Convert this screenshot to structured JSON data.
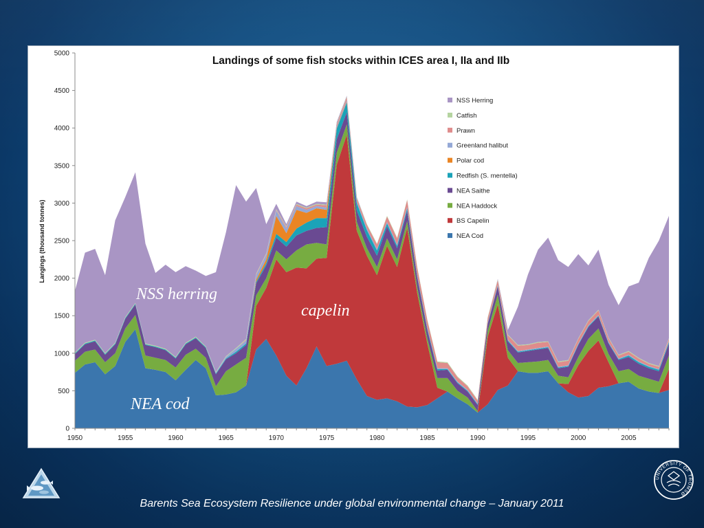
{
  "footer": "Barents Sea Ecosystem Resilience under global environmental change – January 2011",
  "logos": {
    "left": "fish-triangle-logo",
    "right": "university-seal-logo",
    "right_seal_text": "UNIVERSITY OF TROMSØ"
  },
  "annotations": {
    "herring": "NSS herring",
    "capelin": "capelin",
    "cod": "NEA cod"
  },
  "chart_data": {
    "type": "area",
    "stacked": true,
    "title": "Landings of some fish stocks within ICES area I, IIa and IIb",
    "xlabel": "",
    "ylabel": "Langings (thousand tonnes)",
    "ylim": [
      0,
      5000
    ],
    "yticks": [
      "0",
      "500",
      "1000",
      "1500",
      "2000",
      "2500",
      "3000",
      "3500",
      "4000",
      "4500",
      "5000"
    ],
    "xticks": [
      "1950",
      "1955",
      "1960",
      "1965",
      "1970",
      "1975",
      "1980",
      "1985",
      "1990",
      "1995",
      "2000",
      "2005"
    ],
    "grid": false,
    "legend_position": "right",
    "x": [
      1950,
      1951,
      1952,
      1953,
      1954,
      1955,
      1956,
      1957,
      1958,
      1959,
      1960,
      1961,
      1962,
      1963,
      1964,
      1965,
      1966,
      1967,
      1968,
      1969,
      1970,
      1971,
      1972,
      1973,
      1974,
      1975,
      1976,
      1977,
      1978,
      1979,
      1980,
      1981,
      1982,
      1983,
      1984,
      1985,
      1986,
      1987,
      1988,
      1989,
      1990,
      1991,
      1992,
      1993,
      1994,
      1995,
      1996,
      1997,
      1998,
      1999,
      2000,
      2001,
      2002,
      2003,
      2004,
      2005,
      2006,
      2007,
      2008,
      2009
    ],
    "series": [
      {
        "name": "NEA Cod",
        "color": "#3b76ad",
        "values": [
          740,
          850,
          880,
          720,
          830,
          1150,
          1320,
          800,
          780,
          750,
          640,
          780,
          910,
          800,
          440,
          450,
          480,
          570,
          1050,
          1190,
          970,
          700,
          570,
          800,
          1090,
          830,
          860,
          900,
          650,
          430,
          380,
          400,
          360,
          290,
          280,
          310,
          400,
          490,
          400,
          320,
          210,
          320,
          510,
          570,
          760,
          740,
          740,
          760,
          600,
          480,
          410,
          430,
          540,
          560,
          600,
          620,
          530,
          490,
          470,
          510
        ]
      },
      {
        "name": "BS Capelin",
        "color": "#c0393b",
        "values": [
          0,
          0,
          0,
          0,
          0,
          0,
          0,
          0,
          0,
          0,
          0,
          0,
          0,
          0,
          0,
          0,
          0,
          0,
          580,
          680,
          1280,
          1380,
          1570,
          1330,
          1170,
          1440,
          2650,
          3010,
          1980,
          1870,
          1660,
          2030,
          1790,
          2380,
          1520,
          820,
          140,
          0,
          0,
          0,
          0,
          900,
          1140,
          370,
          0,
          0,
          0,
          0,
          0,
          110,
          430,
          600,
          630,
          320,
          0,
          0,
          0,
          0,
          0,
          280
        ]
      },
      {
        "name": "NEA Haddock",
        "color": "#77ac41",
        "values": [
          160,
          170,
          170,
          160,
          170,
          180,
          190,
          170,
          160,
          160,
          170,
          200,
          150,
          140,
          120,
          310,
          370,
          370,
          140,
          130,
          120,
          170,
          230,
          320,
          210,
          180,
          160,
          140,
          120,
          100,
          110,
          100,
          100,
          90,
          80,
          70,
          130,
          180,
          100,
          90,
          20,
          80,
          130,
          100,
          110,
          140,
          150,
          150,
          100,
          90,
          110,
          160,
          160,
          110,
          160,
          170,
          170,
          170,
          150,
          180
        ]
      },
      {
        "name": "NEA Saithe",
        "color": "#6a4a92",
        "values": [
          90,
          100,
          110,
          100,
          120,
          130,
          140,
          140,
          140,
          130,
          120,
          140,
          140,
          130,
          160,
          160,
          150,
          170,
          160,
          170,
          170,
          170,
          200,
          180,
          200,
          230,
          180,
          160,
          150,
          150,
          150,
          160,
          150,
          140,
          130,
          110,
          100,
          110,
          100,
          80,
          80,
          90,
          110,
          120,
          140,
          150,
          160,
          160,
          100,
          140,
          160,
          160,
          160,
          140,
          150,
          160,
          160,
          140,
          140,
          160
        ]
      },
      {
        "name": "Redfish (S. mentella)",
        "color": "#1ba3b8",
        "values": [
          10,
          10,
          10,
          10,
          10,
          10,
          10,
          10,
          10,
          10,
          10,
          10,
          10,
          10,
          10,
          10,
          20,
          20,
          20,
          30,
          50,
          60,
          90,
          110,
          130,
          120,
          140,
          130,
          100,
          90,
          70,
          40,
          30,
          30,
          20,
          20,
          20,
          10,
          10,
          10,
          10,
          10,
          10,
          10,
          10,
          10,
          10,
          10,
          10,
          10,
          10,
          10,
          10,
          10,
          10,
          20,
          20,
          20,
          20,
          20
        ]
      },
      {
        "name": "Polar cod",
        "color": "#ea8524",
        "values": [
          0,
          0,
          0,
          0,
          0,
          0,
          0,
          0,
          0,
          0,
          0,
          0,
          0,
          0,
          0,
          0,
          0,
          0,
          30,
          50,
          240,
          120,
          250,
          130,
          130,
          110,
          10,
          10,
          0,
          0,
          0,
          0,
          0,
          0,
          0,
          0,
          0,
          0,
          0,
          0,
          0,
          0,
          0,
          0,
          0,
          0,
          0,
          0,
          0,
          0,
          0,
          0,
          0,
          0,
          0,
          0,
          0,
          0,
          0,
          0
        ]
      },
      {
        "name": "Greenland halibut",
        "color": "#94a8d6",
        "values": [
          0,
          0,
          0,
          0,
          0,
          0,
          0,
          0,
          0,
          0,
          0,
          0,
          0,
          0,
          10,
          20,
          40,
          40,
          60,
          60,
          70,
          60,
          50,
          40,
          30,
          30,
          20,
          20,
          20,
          20,
          20,
          20,
          20,
          20,
          10,
          10,
          10,
          10,
          10,
          10,
          10,
          10,
          10,
          10,
          10,
          10,
          10,
          10,
          10,
          10,
          10,
          10,
          10,
          10,
          10,
          10,
          10,
          10,
          10,
          10
        ]
      },
      {
        "name": "Prawn",
        "color": "#df8c8c",
        "values": [
          0,
          0,
          0,
          0,
          0,
          0,
          0,
          0,
          0,
          0,
          0,
          0,
          0,
          0,
          0,
          0,
          0,
          10,
          10,
          10,
          10,
          20,
          20,
          20,
          20,
          30,
          30,
          40,
          40,
          50,
          60,
          70,
          80,
          90,
          100,
          100,
          80,
          70,
          60,
          50,
          40,
          60,
          60,
          60,
          70,
          60,
          70,
          60,
          60,
          60,
          60,
          60,
          60,
          50,
          40,
          40,
          40,
          30,
          30,
          30
        ]
      },
      {
        "name": "Catfish",
        "color": "#b5d4a0",
        "values": [
          10,
          10,
          10,
          10,
          10,
          10,
          10,
          10,
          10,
          10,
          10,
          10,
          10,
          10,
          10,
          10,
          10,
          10,
          10,
          10,
          10,
          10,
          10,
          10,
          10,
          10,
          10,
          10,
          10,
          10,
          10,
          10,
          10,
          10,
          10,
          10,
          10,
          10,
          10,
          10,
          10,
          10,
          10,
          10,
          10,
          10,
          10,
          10,
          10,
          10,
          10,
          10,
          10,
          10,
          10,
          10,
          10,
          10,
          10,
          10
        ]
      },
      {
        "name": "NSS Herring",
        "color": "#a995c4",
        "values": [
          820,
          1200,
          1210,
          1040,
          1630,
          1600,
          1740,
          1330,
          970,
          1120,
          1130,
          1020,
          880,
          940,
          1330,
          1650,
          2170,
          1830,
          1140,
          390,
          70,
          30,
          30,
          20,
          30,
          30,
          20,
          10,
          10,
          0,
          0,
          0,
          0,
          0,
          0,
          0,
          0,
          0,
          0,
          0,
          0,
          0,
          10,
          60,
          510,
          930,
          1230,
          1380,
          1350,
          1240,
          1120,
          730,
          800,
          700,
          660,
          860,
          1000,
          1400,
          1670,
          1630
        ]
      }
    ]
  }
}
